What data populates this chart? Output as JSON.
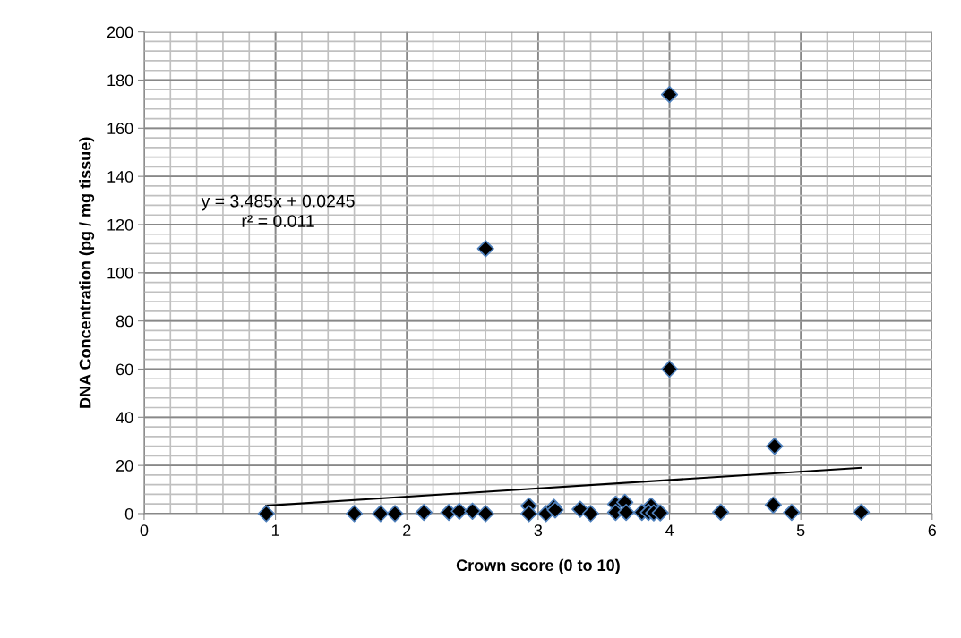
{
  "chart_data": {
    "type": "scatter",
    "xlabel": "Crown score (0 to 10)",
    "ylabel": "DNA Concentration (pg / mg tissue)",
    "xlim": [
      0,
      6
    ],
    "xticks": [
      0,
      1,
      2,
      3,
      4,
      5,
      6
    ],
    "ylim": [
      0,
      200
    ],
    "yticks": [
      0,
      20,
      40,
      60,
      80,
      100,
      120,
      140,
      160,
      180,
      200
    ],
    "grid": true,
    "series": [
      {
        "color": "#000000",
        "marker": "diamond",
        "x": [
          0.93,
          1.6,
          1.8,
          1.91,
          2.13,
          2.32,
          2.4,
          2.5,
          2.6,
          2.6,
          2.93,
          2.93,
          3.06,
          3.12,
          3.13,
          3.32,
          3.4,
          3.59,
          3.66,
          3.59,
          3.67,
          3.79,
          3.86,
          3.84,
          3.88,
          3.93,
          4.0,
          4.0,
          4.39,
          4.79,
          4.8,
          4.93,
          5.46
        ],
        "values": [
          0,
          0,
          0,
          0,
          0.5,
          0.5,
          1,
          1,
          0,
          110,
          3.2,
          0,
          0,
          2.6,
          1.5,
          1.8,
          0,
          3.9,
          4.7,
          0.5,
          0.5,
          0.5,
          3.2,
          0.5,
          0.3,
          0.3,
          174,
          60,
          0.6,
          3.6,
          28,
          0.5,
          0.6
        ]
      },
      {
        "type": "line",
        "color": "#000000",
        "x": [
          0.93,
          5.46
        ],
        "values": [
          3.3,
          19
        ]
      }
    ],
    "annotations": [
      "y = 3.485x + 0.0245\nr² = 0.011"
    ]
  }
}
